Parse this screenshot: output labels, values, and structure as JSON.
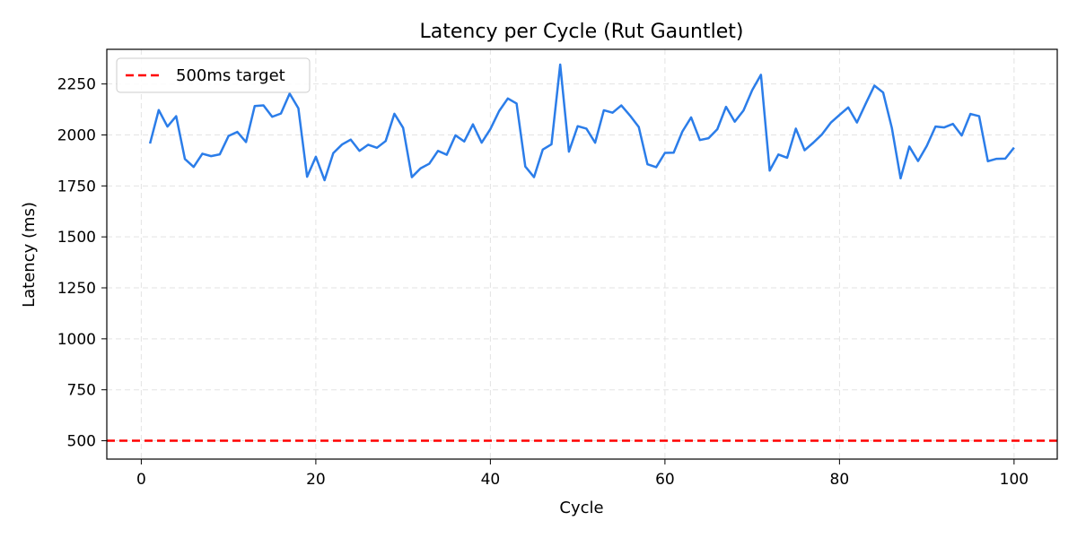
{
  "chart_data": {
    "type": "line",
    "title": "Latency per Cycle (Rut Gauntlet)",
    "xlabel": "Cycle",
    "ylabel": "Latency (ms)",
    "xlim": [
      -3.95,
      104.95
    ],
    "ylim": [
      410,
      2420
    ],
    "xticks": [
      0,
      20,
      40,
      60,
      80,
      100
    ],
    "yticks": [
      500,
      750,
      1000,
      1250,
      1500,
      1750,
      2000,
      2250
    ],
    "grid": true,
    "legend_position": "top-left",
    "series": [
      {
        "name": "",
        "color": "#2b7de9",
        "style": "solid",
        "x": [
          1,
          2,
          3,
          4,
          5,
          6,
          7,
          8,
          9,
          10,
          11,
          12,
          13,
          14,
          15,
          16,
          17,
          18,
          19,
          20,
          21,
          22,
          23,
          24,
          25,
          26,
          27,
          28,
          29,
          30,
          31,
          32,
          33,
          34,
          35,
          36,
          37,
          38,
          39,
          40,
          41,
          42,
          43,
          44,
          45,
          46,
          47,
          48,
          49,
          50,
          51,
          52,
          53,
          54,
          55,
          56,
          57,
          58,
          59,
          60,
          61,
          62,
          63,
          64,
          65,
          66,
          67,
          68,
          69,
          70,
          71,
          72,
          73,
          74,
          75,
          76,
          77,
          78,
          79,
          80,
          81,
          82,
          83,
          84,
          85,
          86,
          87,
          88,
          89,
          90,
          91,
          92,
          93,
          94,
          95,
          96,
          97,
          98,
          99,
          100
        ],
        "y": [
          1958,
          2122,
          2041,
          2092,
          1882,
          1843,
          1908,
          1896,
          1905,
          1995,
          2015,
          1965,
          2142,
          2145,
          2089,
          2105,
          2203,
          2131,
          1795,
          1893,
          1778,
          1911,
          1953,
          1977,
          1922,
          1952,
          1937,
          1970,
          2104,
          2035,
          1793,
          1836,
          1859,
          1922,
          1903,
          1998,
          1968,
          2052,
          1962,
          2029,
          2117,
          2179,
          2154,
          1845,
          1793,
          1928,
          1954,
          2345,
          1918,
          2043,
          2031,
          1962,
          2121,
          2109,
          2145,
          2095,
          2039,
          1856,
          1842,
          1912,
          1913,
          2017,
          2086,
          1975,
          1984,
          2028,
          2138,
          2065,
          2120,
          2220,
          2295,
          1825,
          1904,
          1888,
          2031,
          1925,
          1962,
          2003,
          2060,
          2098,
          2135,
          2061,
          2153,
          2242,
          2208,
          2034,
          1787,
          1943,
          1872,
          1946,
          2041,
          2037,
          2054,
          1997,
          2103,
          2092,
          1871,
          1883,
          1884,
          1938
        ]
      },
      {
        "name": "500ms target",
        "color": "#ff0000",
        "style": "dashed",
        "y_const": 500
      }
    ]
  }
}
